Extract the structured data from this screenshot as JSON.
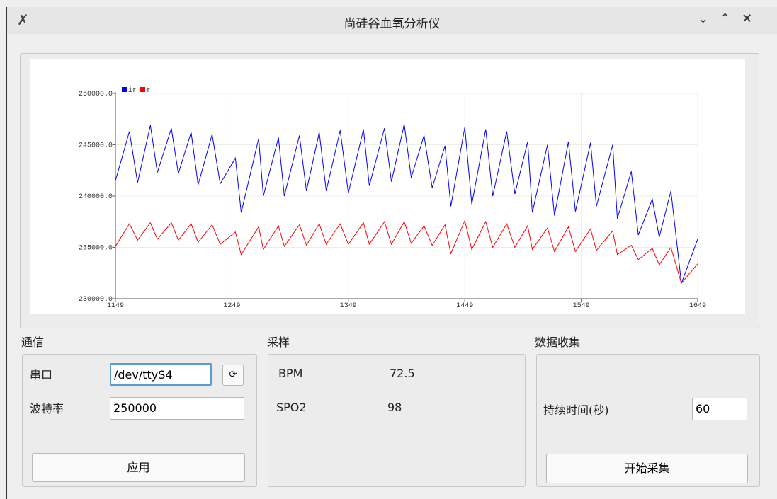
{
  "window": {
    "title": "尚硅谷血氧分析仪"
  },
  "chart_data": {
    "type": "line",
    "legend": "upper left",
    "grid": true,
    "x": [
      1149,
      1161,
      1168,
      1179,
      1185,
      1197,
      1203,
      1214,
      1220,
      1232,
      1239,
      1252,
      1257,
      1272,
      1276,
      1289,
      1294,
      1307,
      1313,
      1324,
      1330,
      1342,
      1349,
      1362,
      1367,
      1380,
      1386,
      1397,
      1403,
      1414,
      1421,
      1432,
      1437,
      1449,
      1455,
      1467,
      1473,
      1485,
      1492,
      1503,
      1507,
      1520,
      1526,
      1538,
      1544,
      1557,
      1562,
      1576,
      1580,
      1592,
      1598,
      1610,
      1616,
      1626,
      1635,
      1649
    ],
    "xlim": [
      1149,
      1649
    ],
    "xticks": [
      1149,
      1249,
      1349,
      1449,
      1549,
      1649
    ],
    "ylim": [
      230000,
      250000
    ],
    "yticks": [
      {
        "value": 230000,
        "label": "230000.0"
      },
      {
        "value": 235000,
        "label": "235000.0"
      },
      {
        "value": 240000,
        "label": "240000.0"
      },
      {
        "value": 245000,
        "label": "245000.0"
      },
      {
        "value": 250000,
        "label": "250000.0"
      }
    ],
    "series": [
      {
        "name": "ir",
        "color": "#0000ff",
        "values": [
          241500,
          246300,
          241300,
          246900,
          242300,
          246600,
          242200,
          246200,
          241100,
          246000,
          241200,
          243700,
          238400,
          245600,
          240000,
          245700,
          240000,
          245900,
          240500,
          246200,
          240500,
          246400,
          240300,
          246500,
          241000,
          246600,
          241400,
          247000,
          241800,
          245900,
          240800,
          244900,
          239000,
          246700,
          239200,
          246500,
          240000,
          246300,
          240200,
          245300,
          238400,
          245000,
          238100,
          245300,
          238500,
          245200,
          239000,
          245000,
          237800,
          242400,
          236200,
          239700,
          236000,
          240500,
          231500,
          235800
        ]
      },
      {
        "name": "r",
        "color": "#ff0000",
        "values": [
          235100,
          237300,
          235700,
          237400,
          235800,
          237400,
          235700,
          237300,
          235500,
          237200,
          235300,
          236500,
          234300,
          237000,
          234800,
          237100,
          235100,
          237200,
          235200,
          237300,
          235300,
          237300,
          235300,
          237400,
          235300,
          237500,
          235300,
          237500,
          235400,
          237100,
          235200,
          237200,
          234400,
          237600,
          234800,
          237500,
          235000,
          237300,
          235000,
          237100,
          234800,
          236900,
          234600,
          237000,
          234600,
          236800,
          234700,
          236600,
          234300,
          235200,
          233800,
          234900,
          233300,
          235000,
          231500,
          233400
        ]
      }
    ]
  },
  "communication": {
    "title": "通信",
    "port_label": "串口",
    "port": "/dev/ttyS4",
    "baud_label": "波特率",
    "baud": 250000,
    "apply": "应用"
  },
  "sampling": {
    "title": "采样",
    "bpm_label": "BPM",
    "bpm": 72.5,
    "spo2_label": "SPO2",
    "spo2": 98
  },
  "collection": {
    "title": "数据收集",
    "duration_label": "持续时间(秒)",
    "duration": 60,
    "start": "开始采集"
  }
}
